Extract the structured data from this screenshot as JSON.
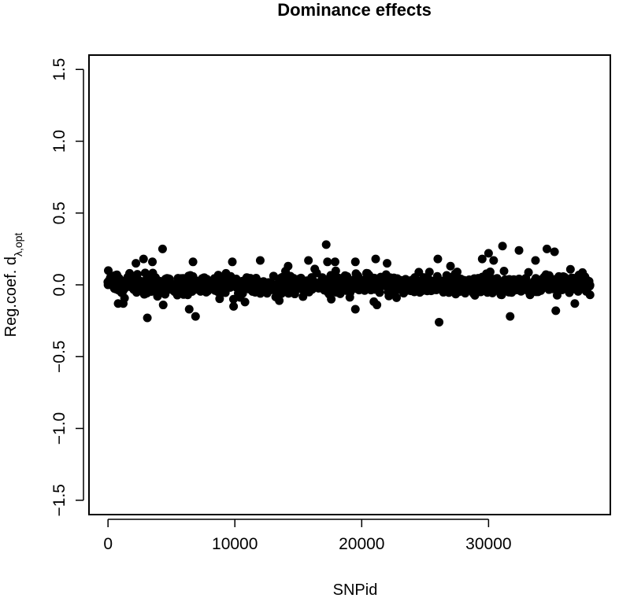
{
  "chart_data": {
    "type": "scatter",
    "title": "Dominance effects",
    "xlabel": "SNPid",
    "ylabel": {
      "main": "Reg.coef. d",
      "subscript": "λ,opt"
    },
    "xlim": [
      -1500,
      39600
    ],
    "ylim": [
      -1.6,
      1.6
    ],
    "x_ticks": [
      0,
      10000,
      20000,
      30000
    ],
    "x_tick_labels": [
      "0",
      "10000",
      "20000",
      "30000"
    ],
    "y_ticks": [
      -1.5,
      -1.0,
      -0.5,
      0.0,
      0.5,
      1.0,
      1.5
    ],
    "y_tick_labels": [
      "−1.5",
      "−1.0",
      "−0.5",
      "0.0",
      "0.5",
      "1.0",
      "1.5"
    ],
    "grid": false,
    "legend": "none",
    "marker_color": "#000000",
    "x_min": 0,
    "x_max": 38000,
    "spread": 0.035,
    "notable_points": [
      {
        "x": 0,
        "y": 0.0
      },
      {
        "x": 700,
        "y": 0.07
      },
      {
        "x": 800,
        "y": -0.13
      },
      {
        "x": 1200,
        "y": -0.13
      },
      {
        "x": 1700,
        "y": 0.08
      },
      {
        "x": 2200,
        "y": 0.15
      },
      {
        "x": 2800,
        "y": 0.18
      },
      {
        "x": 3100,
        "y": -0.23
      },
      {
        "x": 3500,
        "y": 0.16
      },
      {
        "x": 3900,
        "y": -0.08
      },
      {
        "x": 4300,
        "y": 0.25
      },
      {
        "x": 4350,
        "y": -0.14
      },
      {
        "x": 6400,
        "y": -0.17
      },
      {
        "x": 6700,
        "y": 0.16
      },
      {
        "x": 6900,
        "y": -0.22
      },
      {
        "x": 9300,
        "y": 0.08
      },
      {
        "x": 9800,
        "y": 0.16
      },
      {
        "x": 9900,
        "y": -0.15
      },
      {
        "x": 10800,
        "y": -0.12
      },
      {
        "x": 12000,
        "y": 0.17
      },
      {
        "x": 13500,
        "y": -0.11
      },
      {
        "x": 14200,
        "y": 0.13
      },
      {
        "x": 15800,
        "y": 0.17
      },
      {
        "x": 16300,
        "y": 0.11
      },
      {
        "x": 17200,
        "y": 0.28
      },
      {
        "x": 17300,
        "y": 0.16
      },
      {
        "x": 17600,
        "y": -0.1
      },
      {
        "x": 17900,
        "y": 0.16
      },
      {
        "x": 19500,
        "y": 0.16
      },
      {
        "x": 19500,
        "y": -0.17
      },
      {
        "x": 21100,
        "y": 0.18
      },
      {
        "x": 21200,
        "y": -0.14
      },
      {
        "x": 22000,
        "y": 0.15
      },
      {
        "x": 26000,
        "y": 0.18
      },
      {
        "x": 26100,
        "y": -0.26
      },
      {
        "x": 27000,
        "y": 0.13
      },
      {
        "x": 29500,
        "y": 0.18
      },
      {
        "x": 30000,
        "y": 0.22
      },
      {
        "x": 30400,
        "y": 0.17
      },
      {
        "x": 31100,
        "y": 0.27
      },
      {
        "x": 31700,
        "y": -0.22
      },
      {
        "x": 32400,
        "y": 0.24
      },
      {
        "x": 33700,
        "y": 0.17
      },
      {
        "x": 34600,
        "y": 0.25
      },
      {
        "x": 35200,
        "y": 0.23
      },
      {
        "x": 35300,
        "y": -0.18
      },
      {
        "x": 36800,
        "y": -0.13
      },
      {
        "x": 38000,
        "y": -0.07
      }
    ]
  }
}
